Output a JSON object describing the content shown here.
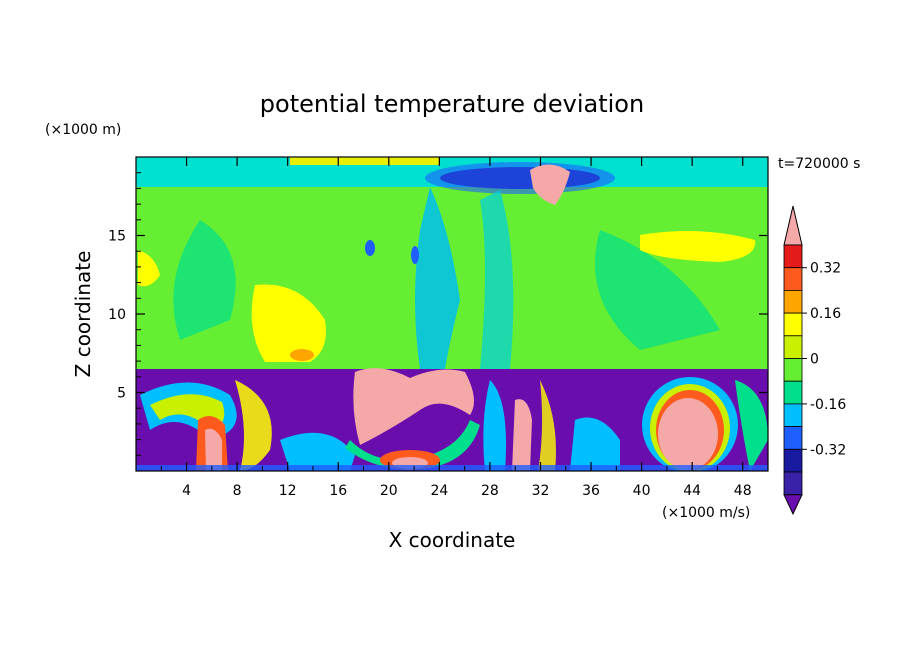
{
  "chart_data": {
    "type": "heatmap",
    "title": "potential temperature deviation",
    "xlabel": "X coordinate",
    "ylabel": "Z coordinate",
    "x_units": "(×1000 m/s)",
    "y_units": "(×1000 m)",
    "time_label": "t=720000 s",
    "xlim": [
      0,
      50
    ],
    "ylim": [
      0,
      20
    ],
    "x_ticks": [
      "4",
      "8",
      "12",
      "16",
      "20",
      "24",
      "28",
      "32",
      "36",
      "40",
      "44",
      "48"
    ],
    "y_ticks": [
      "5",
      "10",
      "15"
    ],
    "colorbar": {
      "levels": [
        -0.48,
        -0.4,
        -0.32,
        -0.24,
        -0.16,
        -0.08,
        0,
        0.08,
        0.16,
        0.24,
        0.32,
        0.4
      ],
      "labels": [
        "0.32",
        "0.16",
        "0",
        "-0.16",
        "-0.32"
      ],
      "colors": [
        "#6a0dad",
        "#3a21a8",
        "#1a1aa0",
        "#1f5fff",
        "#00bfff",
        "#00e08c",
        "#66ee33",
        "#c8f000",
        "#ffff00",
        "#ffa500",
        "#ff5a1e",
        "#e51a1a",
        "#f4a8a8"
      ]
    }
  }
}
